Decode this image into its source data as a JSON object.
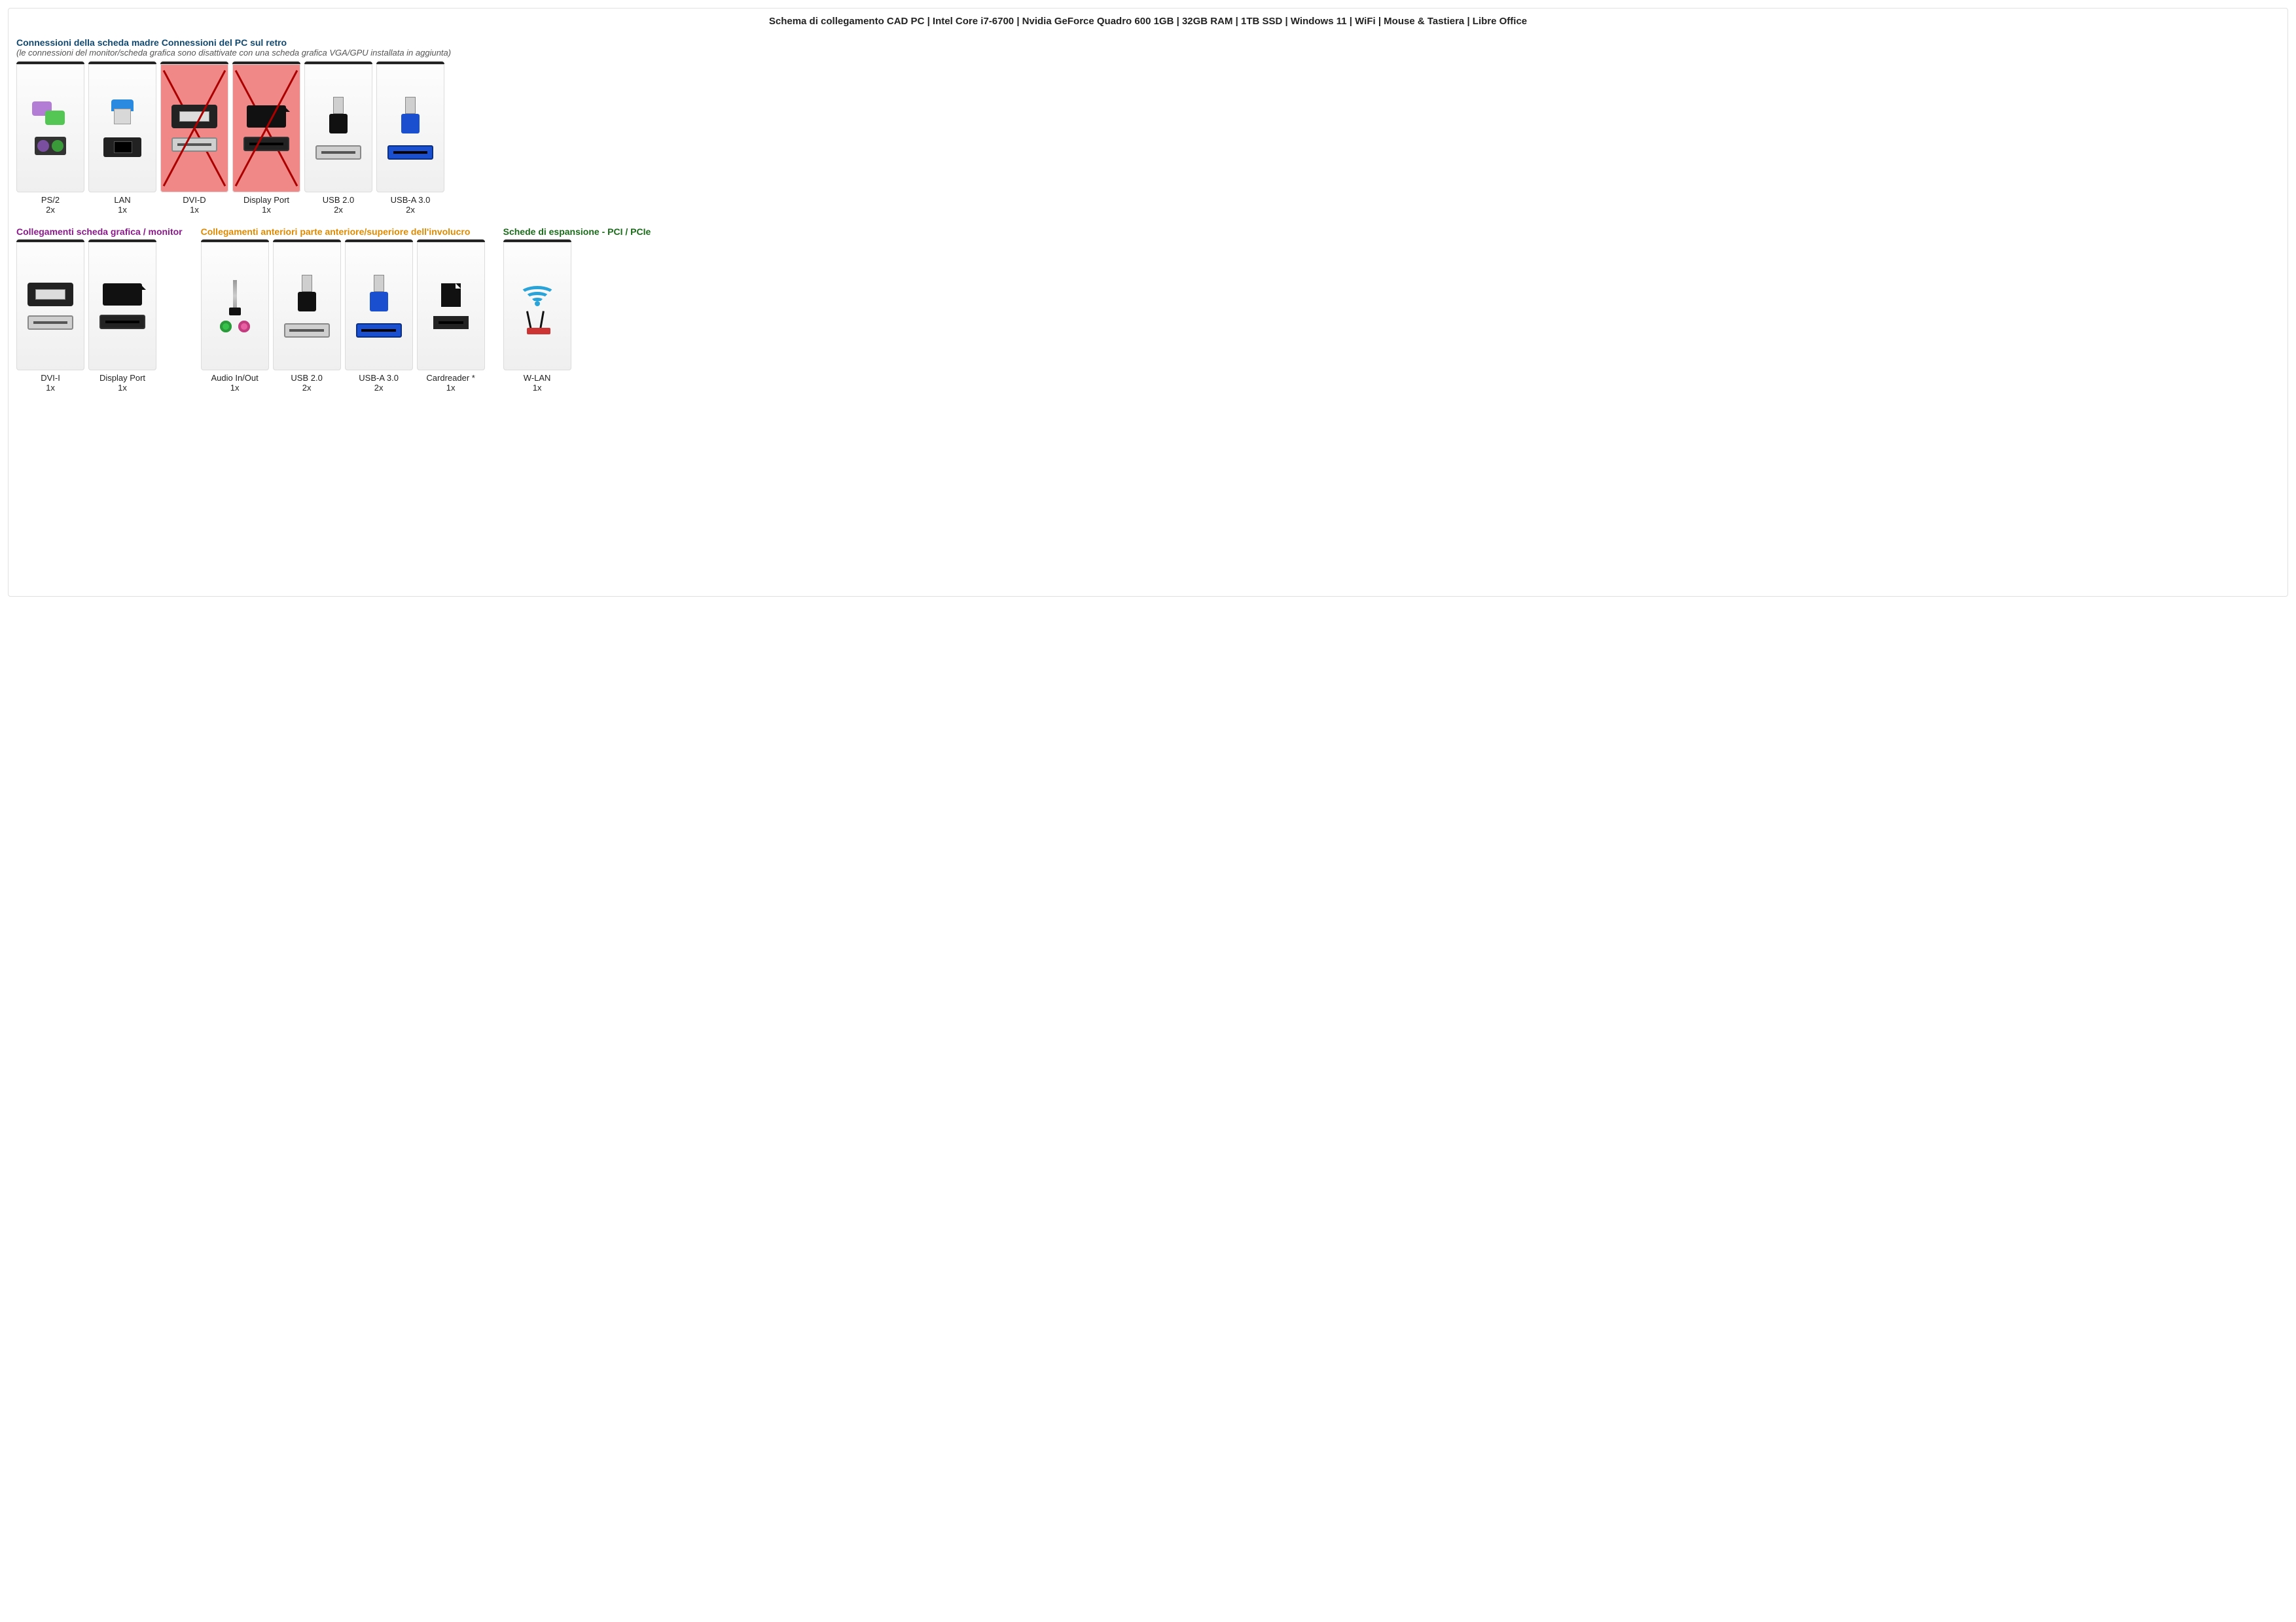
{
  "title": "Schema di collegamento CAD PC | Intel Core i7-6700 | Nvidia GeForce Quadro 600 1GB | 32GB RAM | 1TB SSD | Windows 11 | WiFi | Mouse & Tastiera | Libre Office",
  "colors": {
    "blue": "#11486f",
    "purple": "#8a1a8a",
    "orange": "#e08a00",
    "green": "#1a6b1a"
  },
  "section1": {
    "title": "Connessioni della scheda madre Connessioni del PC sul retro",
    "subtitle": "(le connessioni del monitor/scheda grafica sono disattivate con una scheda grafica VGA/GPU installata in aggiunta)",
    "cards": [
      {
        "label": "PS/2",
        "qty": "2x",
        "icon": "ps2",
        "disabled": false
      },
      {
        "label": "LAN",
        "qty": "1x",
        "icon": "lan",
        "disabled": false
      },
      {
        "label": "DVI-D",
        "qty": "1x",
        "icon": "dvi",
        "disabled": true
      },
      {
        "label": "Display Port",
        "qty": "1x",
        "icon": "dp",
        "disabled": true
      },
      {
        "label": "USB 2.0",
        "qty": "2x",
        "icon": "usb2",
        "disabled": false
      },
      {
        "label": "USB-A 3.0",
        "qty": "2x",
        "icon": "usb3",
        "disabled": false
      }
    ]
  },
  "section2": {
    "title": "Collegamenti scheda grafica / monitor",
    "cards": [
      {
        "label": "DVI-I",
        "qty": "1x",
        "icon": "dvi"
      },
      {
        "label": "Display Port",
        "qty": "1x",
        "icon": "dp"
      }
    ]
  },
  "section3": {
    "title": "Collegamenti anteriori parte anteriore/superiore dell'involucro",
    "cards": [
      {
        "label": "Audio In/Out",
        "qty": "1x",
        "icon": "audio"
      },
      {
        "label": "USB 2.0",
        "qty": "2x",
        "icon": "usb2"
      },
      {
        "label": "USB-A 3.0",
        "qty": "2x",
        "icon": "usb3"
      },
      {
        "label": "Cardreader *",
        "qty": "1x",
        "icon": "card"
      }
    ]
  },
  "section4": {
    "title": "Schede di espansione - PCI / PCIe",
    "cards": [
      {
        "label": "W-LAN",
        "qty": "1x",
        "icon": "wlan"
      }
    ]
  }
}
